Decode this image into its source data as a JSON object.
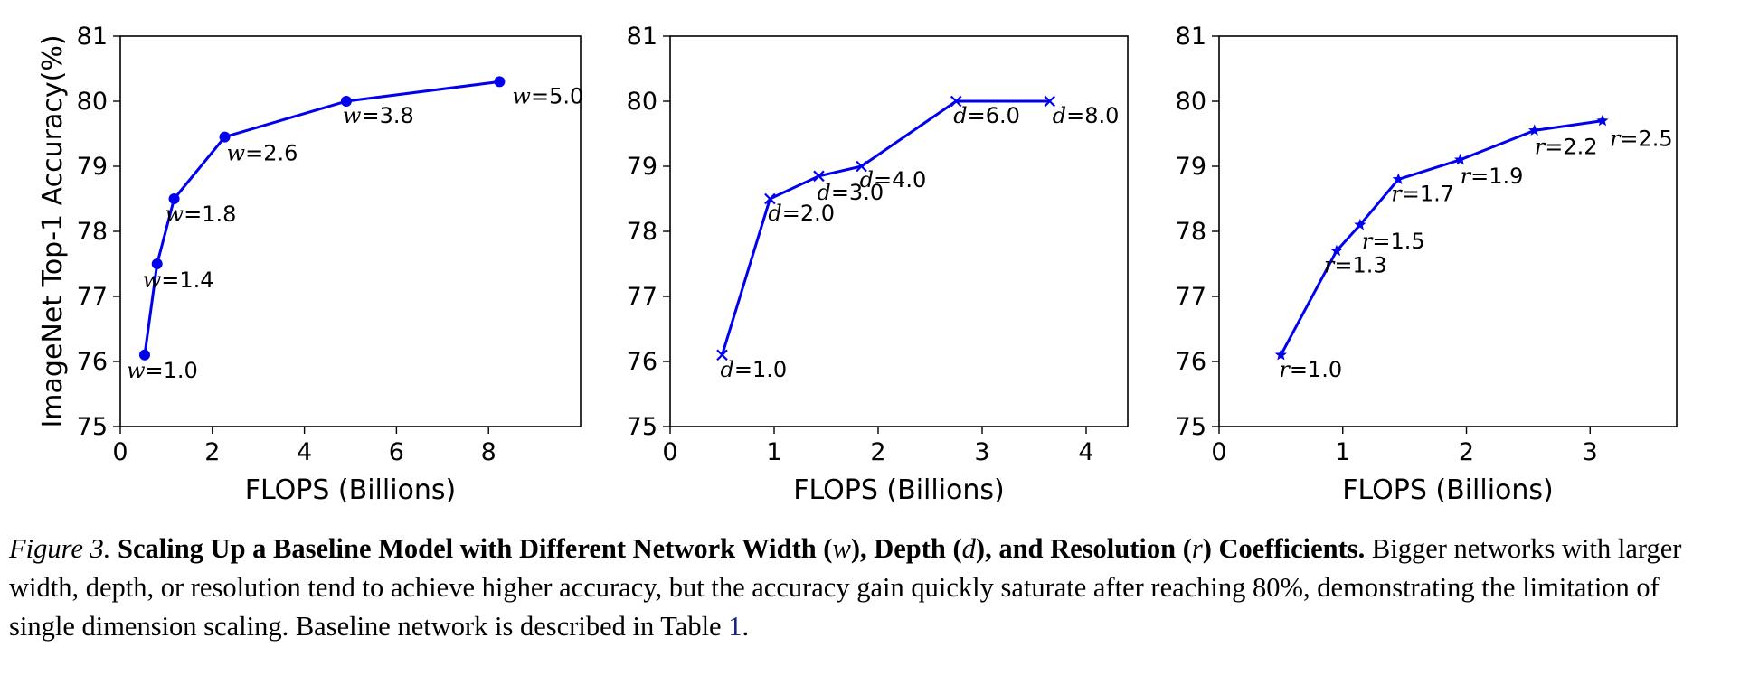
{
  "colors": {
    "series": "#0000ee",
    "axis": "#000000",
    "background": "#ffffff",
    "link": "#1a237e"
  },
  "chart_data": [
    {
      "type": "line",
      "marker": "circle",
      "xlabel": "FLOPS (Billions)",
      "ylabel": "ImageNet Top-1 Accuracy(%)",
      "xlim": [
        0,
        10
      ],
      "ylim": [
        75,
        81
      ],
      "xticks": [
        0,
        2,
        4,
        6,
        8
      ],
      "yticks": [
        75,
        76,
        77,
        78,
        79,
        80,
        81
      ],
      "series": [
        {
          "x": [
            0.53,
            0.8,
            1.17,
            2.27,
            4.91,
            8.24
          ],
          "y": [
            76.1,
            77.5,
            78.5,
            79.45,
            80.0,
            80.3
          ],
          "labels": [
            {
              "var": "w",
              "text": "=1.0"
            },
            {
              "var": "w",
              "text": "=1.4"
            },
            {
              "var": "w",
              "text": "=1.8"
            },
            {
              "var": "w",
              "text": "=2.6"
            },
            {
              "var": "w",
              "text": "=3.8"
            },
            {
              "var": "w",
              "text": "=5.0"
            }
          ]
        }
      ]
    },
    {
      "type": "line",
      "marker": "x",
      "xlabel": "FLOPS (Billions)",
      "ylabel": "",
      "xlim": [
        0,
        4.4
      ],
      "ylim": [
        75,
        81
      ],
      "xticks": [
        0,
        1,
        2,
        3,
        4
      ],
      "yticks": [
        75,
        76,
        77,
        78,
        79,
        80,
        81
      ],
      "series": [
        {
          "x": [
            0.5,
            0.96,
            1.43,
            1.84,
            2.75,
            3.65
          ],
          "y": [
            76.1,
            78.5,
            78.85,
            79.0,
            80.0,
            80.0
          ],
          "labels": [
            {
              "var": "d",
              "text": "=1.0"
            },
            {
              "var": "d",
              "text": "=2.0"
            },
            {
              "var": "d",
              "text": "=3.0"
            },
            {
              "var": "d",
              "text": "=4.0"
            },
            {
              "var": "d",
              "text": "=6.0"
            },
            {
              "var": "d",
              "text": "=8.0"
            }
          ]
        }
      ]
    },
    {
      "type": "line",
      "marker": "star",
      "xlabel": "FLOPS (Billions)",
      "ylabel": "",
      "xlim": [
        0,
        3.7
      ],
      "ylim": [
        75,
        81
      ],
      "xticks": [
        0,
        1,
        2,
        3
      ],
      "yticks": [
        75,
        76,
        77,
        78,
        79,
        80,
        81
      ],
      "series": [
        {
          "x": [
            0.5,
            0.95,
            1.14,
            1.45,
            1.95,
            2.55,
            3.1
          ],
          "y": [
            76.1,
            77.7,
            78.1,
            78.8,
            79.1,
            79.55,
            79.7
          ],
          "labels": [
            {
              "var": "r",
              "text": "=1.0"
            },
            {
              "var": "r",
              "text": "=1.3"
            },
            {
              "var": "r",
              "text": "=1.5"
            },
            {
              "var": "r",
              "text": "=1.7"
            },
            {
              "var": "r",
              "text": "=1.9"
            },
            {
              "var": "r",
              "text": "=2.2"
            },
            {
              "var": "r",
              "text": "=2.5"
            }
          ]
        }
      ]
    }
  ],
  "caption": {
    "figure_label": "Figure 3.",
    "title_parts": [
      "Scaling Up a Baseline Model with Different Network Width (",
      "w",
      "), Depth (",
      "d",
      "), and Resolution (",
      "r",
      ") Coefficients."
    ],
    "body_text": "Bigger networks with larger width, depth, or resolution tend to achieve higher accuracy, but the accuracy gain quickly saturate after reaching 80%, demonstrating the limitation of single dimension scaling. Baseline network is described in Table",
    "table_ref": "1",
    "end": "."
  }
}
